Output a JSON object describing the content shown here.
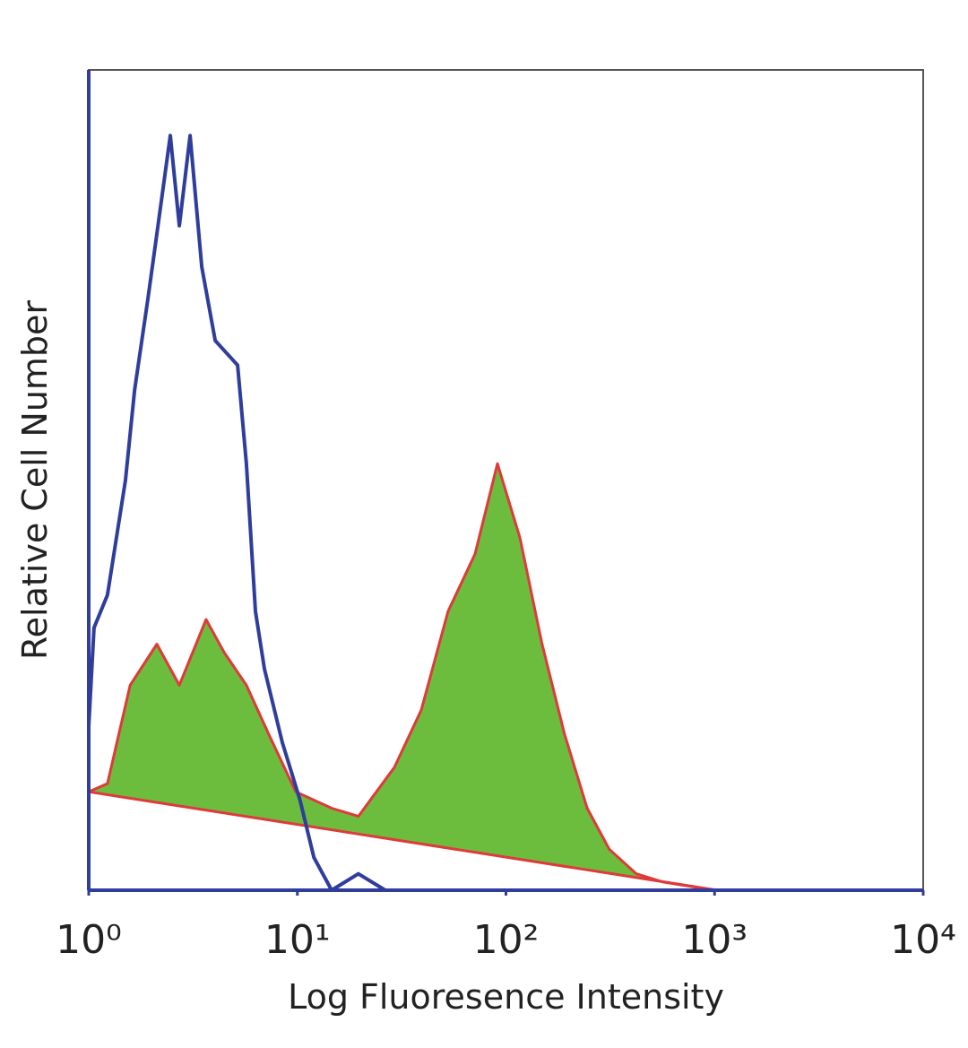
{
  "chart_data": {
    "type": "line",
    "xscale": "log",
    "xlabel": "Log Fluoresence Intensity",
    "ylabel": "Relative Cell Number",
    "xlim": [
      1,
      10000
    ],
    "ylim": [
      0,
      100
    ],
    "xticks": [
      {
        "value": 1,
        "label": "10⁰"
      },
      {
        "value": 10,
        "label": "10¹"
      },
      {
        "value": 100,
        "label": "10²"
      },
      {
        "value": 1000,
        "label": "10³"
      },
      {
        "value": 10000,
        "label": "10⁴"
      }
    ],
    "series": [
      {
        "color": "#2f3d9c",
        "fill": false,
        "x": [
          1,
          1.06,
          1.23,
          1.5,
          1.66,
          1.92,
          2.12,
          2.46,
          2.72,
          3.06,
          3.48,
          4.04,
          5.17,
          5.7,
          6.3,
          6.95,
          8.47,
          10.3,
          12.0,
          14.6,
          19.6,
          26.4
        ],
        "values": [
          20,
          32,
          36,
          50,
          61,
          72,
          80,
          92,
          81,
          92,
          76,
          67,
          64,
          52,
          34,
          27,
          18,
          11,
          4,
          0,
          2,
          0
        ]
      },
      {
        "color": "#6cbd3e",
        "edgecolor": "#e0393a",
        "fill": true,
        "x": [
          1,
          1.23,
          1.58,
          2.12,
          2.72,
          3.65,
          4.46,
          5.7,
          7.3,
          9.83,
          14.6,
          19.6,
          29.2,
          39.3,
          52.8,
          71.1,
          91.0,
          116.6,
          149,
          191,
          245,
          313,
          422,
          568,
          843,
          1028
        ],
        "values": [
          12,
          13,
          25,
          30,
          25,
          33,
          29,
          25,
          19,
          12,
          10,
          9,
          15,
          22,
          34,
          41,
          52,
          43,
          30,
          19,
          10,
          5,
          2,
          1,
          0.3,
          0
        ]
      }
    ]
  }
}
